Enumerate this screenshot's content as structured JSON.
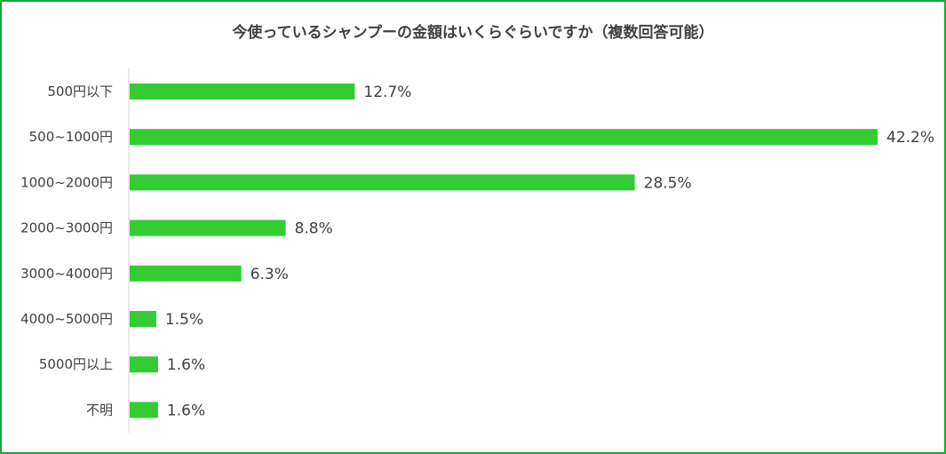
{
  "chart_data": {
    "type": "bar",
    "orientation": "horizontal",
    "title": "今使っているシャンプーの金額はいくらぐらいですか（複数回答可能）",
    "categories": [
      "500円以下",
      "500~1000円",
      "1000~2000円",
      "2000~3000円",
      "3000~4000円",
      "4000~5000円",
      "5000円以上",
      "不明"
    ],
    "values": [
      12.7,
      42.2,
      28.5,
      8.8,
      6.3,
      1.5,
      1.6,
      1.6
    ],
    "value_labels": [
      "12.7%",
      "42.2%",
      "28.5%",
      "8.8%",
      "6.3%",
      "1.5%",
      "1.6%",
      "1.6%"
    ],
    "xlim": [
      0,
      42.2
    ],
    "grid": false,
    "bar_color": "#33cc33",
    "border_color": "#1fa33a"
  }
}
